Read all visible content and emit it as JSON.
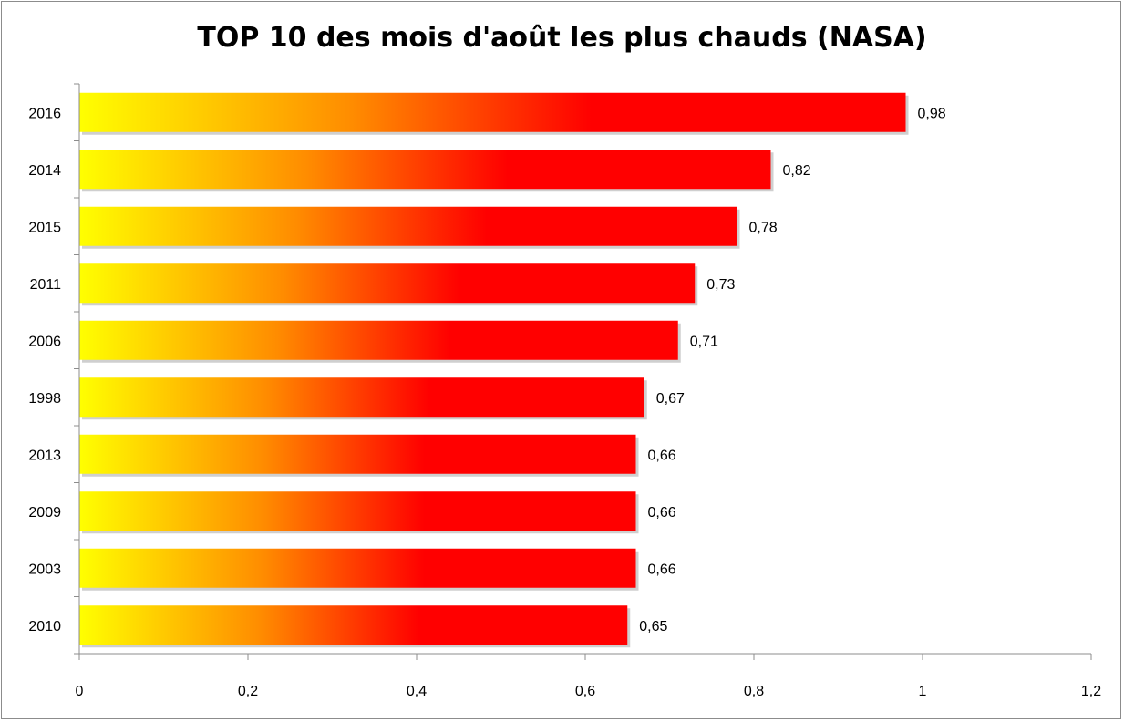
{
  "chart_data": {
    "type": "bar",
    "orientation": "horizontal",
    "title": "TOP 10 des mois d'août les plus chauds (NASA)",
    "xlabel": "",
    "ylabel": "",
    "categories": [
      "2016",
      "2014",
      "2015",
      "2011",
      "2006",
      "1998",
      "2013",
      "2009",
      "2003",
      "2010"
    ],
    "values": [
      0.98,
      0.82,
      0.78,
      0.73,
      0.71,
      0.67,
      0.66,
      0.66,
      0.66,
      0.65
    ],
    "data_labels": [
      "0,98",
      "0,82",
      "0,78",
      "0,73",
      "0,71",
      "0,67",
      "0,66",
      "0,66",
      "0,66",
      "0,65"
    ],
    "xlim": [
      0,
      1.2
    ],
    "x_ticks": [
      0,
      0.2,
      0.4,
      0.6,
      0.8,
      1,
      1.2
    ],
    "x_tick_labels": [
      "0",
      "0,2",
      "0,4",
      "0,6",
      "0,8",
      "1",
      "1,2"
    ],
    "grid": false,
    "legend": "none",
    "colors": {
      "gradient_start": "#ffff00",
      "gradient_mid": "#ff8c00",
      "gradient_end": "#ff0000"
    }
  }
}
